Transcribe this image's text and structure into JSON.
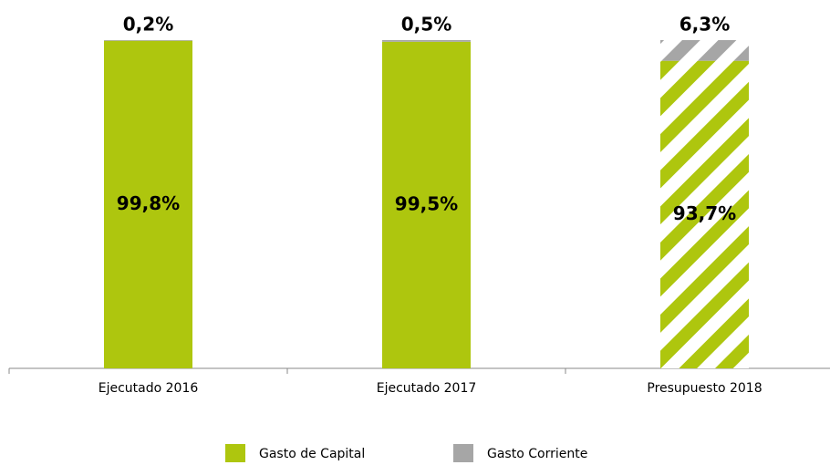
{
  "chart_data": {
    "type": "stacked_bar",
    "categories": [
      "Ejecutado 2016",
      "Ejecutado 2017",
      "Presupuesto 2018"
    ],
    "series": [
      {
        "name": "Gasto de Capital",
        "color": "#aec60e",
        "values": [
          99.8,
          99.5,
          93.7
        ],
        "value_labels": [
          "99,8%",
          "99,5%",
          "93,7%"
        ]
      },
      {
        "name": "Gasto Corriente",
        "color": "#a6a6a6",
        "values": [
          0.2,
          0.5,
          6.3
        ],
        "value_labels": [
          "0,2%",
          "0,5%",
          "6,3%"
        ]
      }
    ],
    "hatched": [
      false,
      false,
      true
    ],
    "ylim": [
      0,
      100
    ]
  }
}
